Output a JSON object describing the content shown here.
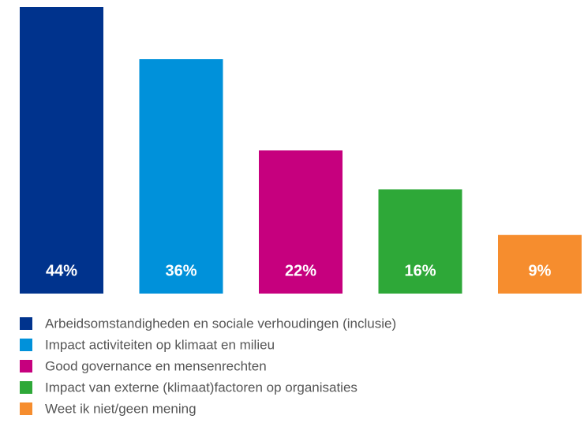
{
  "chart_data": {
    "type": "bar",
    "categories": [
      "Arbeidsomstandigheden en sociale verhoudingen (inclusie)",
      "Impact activiteiten op klimaat en milieu",
      "Good governance en mensenrechten",
      "Impact van externe (klimaat)factoren op organisaties",
      "Weet ik niet/geen mening"
    ],
    "values": [
      44,
      36,
      22,
      16,
      9
    ],
    "value_labels": [
      "44%",
      "36%",
      "22%",
      "16%",
      "9%"
    ],
    "colors": [
      "#00338d",
      "#0091da",
      "#c6007e",
      "#2ea838",
      "#f68d2e"
    ]
  }
}
